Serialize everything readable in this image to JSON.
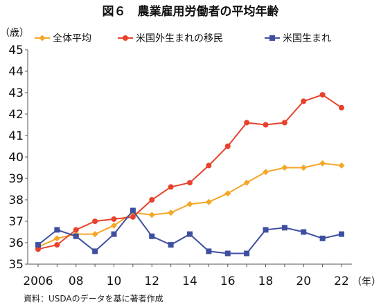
{
  "chart_data": {
    "type": "line",
    "title": "図６　農業雇用労働者の平均年齢",
    "ylabel": "（歳）",
    "xlabel": "（年）",
    "source": "資料：USDAのデータを基に著者作成",
    "x": [
      2006,
      2007,
      2008,
      2009,
      2010,
      2011,
      2012,
      2013,
      2014,
      2015,
      2016,
      2017,
      2018,
      2019,
      2020,
      2021,
      2022
    ],
    "xticks": [
      2006,
      2008,
      2010,
      2012,
      2014,
      2016,
      2018,
      2020,
      2022
    ],
    "xtick_labels": [
      "2006",
      "08",
      "10",
      "12",
      "14",
      "16",
      "18",
      "20",
      "22"
    ],
    "ylim": [
      35,
      45
    ],
    "yticks": [
      35,
      36,
      37,
      38,
      39,
      40,
      41,
      42,
      43,
      44,
      45
    ],
    "grid": false,
    "legend_position": "top",
    "series": [
      {
        "name": "全体平均",
        "color": "#F5A623",
        "marker": "diamond",
        "values": [
          35.8,
          36.2,
          36.4,
          36.4,
          36.8,
          37.4,
          37.3,
          37.4,
          37.8,
          37.9,
          38.3,
          38.8,
          39.3,
          39.5,
          39.5,
          39.7,
          39.6
        ]
      },
      {
        "name": "米国外生まれの移民",
        "color": "#E8412C",
        "marker": "circle",
        "values": [
          35.7,
          35.9,
          36.6,
          37.0,
          37.1,
          37.2,
          38.0,
          38.6,
          38.8,
          39.6,
          40.5,
          41.6,
          41.5,
          41.6,
          42.6,
          42.9,
          42.3
        ]
      },
      {
        "name": "米国生まれ",
        "color": "#3F4FA0",
        "marker": "square",
        "values": [
          35.9,
          36.6,
          36.3,
          35.6,
          36.4,
          37.5,
          36.3,
          35.9,
          36.4,
          35.6,
          35.5,
          35.5,
          36.6,
          36.7,
          36.5,
          36.2,
          36.4
        ]
      }
    ]
  }
}
